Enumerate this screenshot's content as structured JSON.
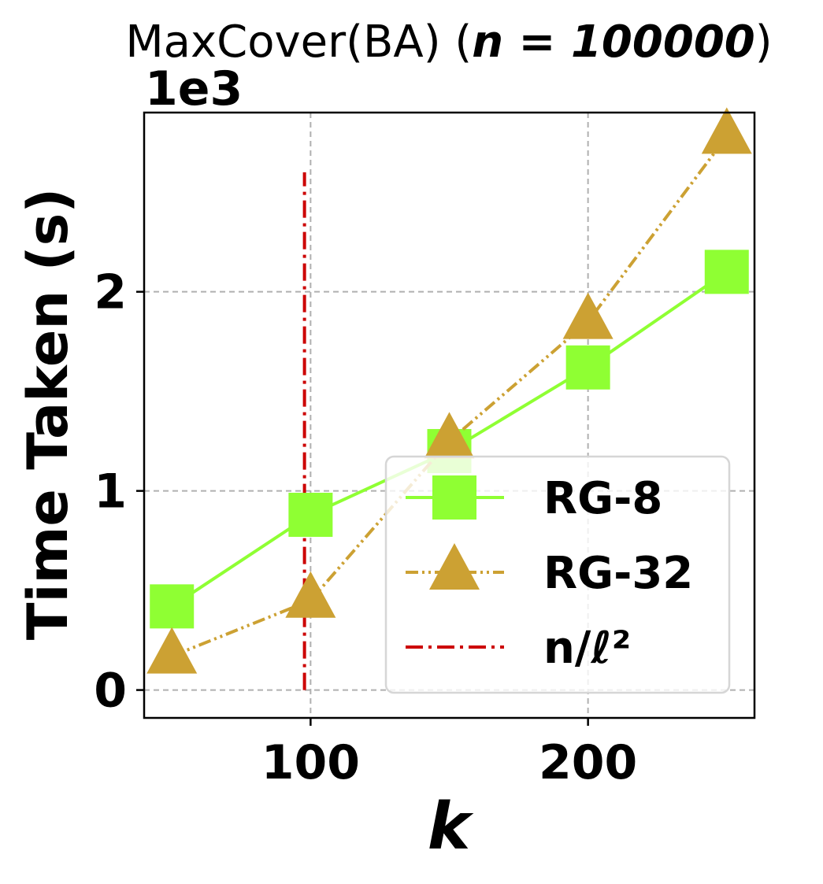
{
  "chart_data": {
    "type": "line",
    "title": {
      "prefix": "MaxCover(BA) (",
      "math": "n = 100000",
      "suffix": ")"
    },
    "scale_label": "1e3",
    "xlabel": "k",
    "ylabel": "Time Taken (s)",
    "x_ticks": [
      100,
      200
    ],
    "y_ticks": [
      0,
      1,
      2
    ],
    "xlim": [
      40,
      260
    ],
    "ylim": [
      -0.14,
      2.9
    ],
    "grid": true,
    "legend_position": "lower-right",
    "series": [
      {
        "name": "RG-8",
        "color": "#8fff33",
        "marker": "square",
        "line_style": "solid",
        "x": [
          50,
          100,
          150,
          200,
          250
        ],
        "y": [
          0.42,
          0.88,
          1.2,
          1.62,
          2.1
        ]
      },
      {
        "name": "RG-32",
        "color": "#cca133",
        "marker": "triangle",
        "line_style": "dashdotdot",
        "x": [
          50,
          100,
          150,
          200,
          250
        ],
        "y": [
          0.17,
          0.45,
          1.25,
          1.85,
          2.78
        ]
      }
    ],
    "threshold": {
      "name": "n/ℓ²",
      "color": "#cc0000",
      "line_style": "dashdot",
      "x": 97.8,
      "y_range": [
        0,
        2.6
      ]
    }
  }
}
